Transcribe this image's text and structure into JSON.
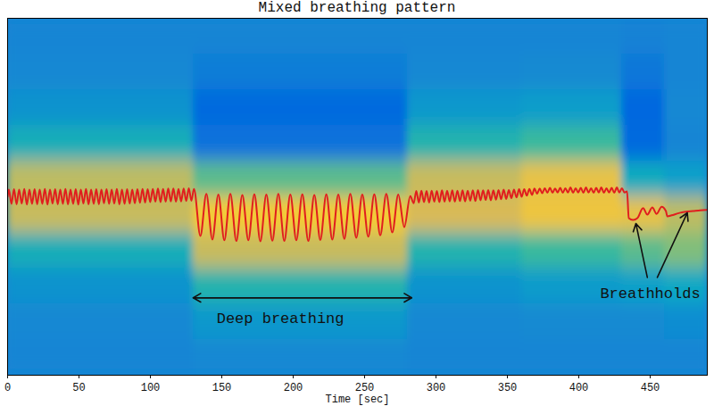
{
  "chart_data": {
    "type": "heatmap",
    "title": "Mixed breathing pattern",
    "x_label": "Time [sec]",
    "xlim": [
      0,
      490
    ],
    "xticks": [
      0,
      50,
      100,
      150,
      200,
      250,
      300,
      350,
      400,
      450
    ],
    "ylim": [
      0,
      100
    ],
    "tick_labels": "x",
    "cells": {
      "x_edges": [
        0,
        10,
        20,
        30,
        40,
        50,
        60,
        70,
        80,
        90,
        100,
        110,
        120,
        130,
        140,
        150,
        160,
        170,
        180,
        190,
        200,
        210,
        220,
        230,
        240,
        250,
        260,
        270,
        280,
        290,
        300,
        310,
        320,
        330,
        340,
        350,
        360,
        370,
        380,
        390,
        400,
        410,
        420,
        430,
        440,
        450,
        460,
        470,
        480,
        490
      ],
      "y_edges": [
        0,
        10,
        20,
        30,
        40,
        50,
        60,
        70,
        80,
        90,
        100
      ],
      "color_range": [
        0,
        1
      ],
      "values": [
        [
          0.25,
          0.25,
          0.25,
          0.25,
          0.25,
          0.25,
          0.25,
          0.25,
          0.25,
          0.25,
          0.25,
          0.25,
          0.25,
          0.26,
          0.26,
          0.26,
          0.26,
          0.26,
          0.26,
          0.26,
          0.26,
          0.26,
          0.26,
          0.26,
          0.26,
          0.26,
          0.26,
          0.26,
          0.25,
          0.25,
          0.25,
          0.25,
          0.25,
          0.25,
          0.25,
          0.25,
          0.25,
          0.25,
          0.25,
          0.25,
          0.25,
          0.25,
          0.25,
          0.25,
          0.25,
          0.25,
          0.25,
          0.25,
          0.25
        ],
        [
          0.26,
          0.26,
          0.26,
          0.26,
          0.26,
          0.26,
          0.26,
          0.26,
          0.26,
          0.26,
          0.26,
          0.26,
          0.26,
          0.32,
          0.32,
          0.32,
          0.32,
          0.32,
          0.32,
          0.32,
          0.32,
          0.32,
          0.32,
          0.32,
          0.32,
          0.32,
          0.32,
          0.32,
          0.26,
          0.26,
          0.26,
          0.26,
          0.26,
          0.26,
          0.26,
          0.26,
          0.27,
          0.27,
          0.27,
          0.27,
          0.27,
          0.27,
          0.27,
          0.27,
          0.27,
          0.27,
          0.28,
          0.28,
          0.28
        ],
        [
          0.3,
          0.3,
          0.3,
          0.3,
          0.3,
          0.3,
          0.3,
          0.3,
          0.3,
          0.3,
          0.3,
          0.3,
          0.3,
          0.45,
          0.45,
          0.45,
          0.45,
          0.45,
          0.45,
          0.45,
          0.45,
          0.45,
          0.45,
          0.45,
          0.45,
          0.45,
          0.45,
          0.45,
          0.3,
          0.3,
          0.3,
          0.3,
          0.3,
          0.3,
          0.3,
          0.3,
          0.33,
          0.33,
          0.33,
          0.33,
          0.33,
          0.33,
          0.33,
          0.35,
          0.35,
          0.35,
          0.38,
          0.38,
          0.38
        ],
        [
          0.42,
          0.42,
          0.42,
          0.42,
          0.42,
          0.42,
          0.42,
          0.42,
          0.42,
          0.42,
          0.42,
          0.42,
          0.42,
          0.72,
          0.72,
          0.72,
          0.72,
          0.72,
          0.72,
          0.72,
          0.72,
          0.72,
          0.72,
          0.72,
          0.72,
          0.72,
          0.72,
          0.72,
          0.45,
          0.45,
          0.45,
          0.45,
          0.45,
          0.45,
          0.45,
          0.45,
          0.5,
          0.5,
          0.5,
          0.5,
          0.5,
          0.5,
          0.5,
          0.55,
          0.55,
          0.55,
          0.6,
          0.6,
          0.6
        ],
        [
          0.72,
          0.72,
          0.72,
          0.72,
          0.72,
          0.72,
          0.72,
          0.72,
          0.72,
          0.72,
          0.72,
          0.72,
          0.72,
          0.85,
          0.85,
          0.85,
          0.85,
          0.85,
          0.85,
          0.85,
          0.85,
          0.85,
          0.85,
          0.85,
          0.85,
          0.85,
          0.85,
          0.85,
          0.75,
          0.75,
          0.75,
          0.75,
          0.75,
          0.75,
          0.75,
          0.75,
          0.82,
          0.82,
          0.82,
          0.82,
          0.82,
          0.82,
          0.82,
          0.8,
          0.8,
          0.8,
          0.7,
          0.7,
          0.7
        ],
        [
          0.7,
          0.7,
          0.7,
          0.7,
          0.7,
          0.7,
          0.7,
          0.7,
          0.7,
          0.7,
          0.7,
          0.7,
          0.7,
          0.55,
          0.55,
          0.55,
          0.55,
          0.55,
          0.55,
          0.55,
          0.55,
          0.55,
          0.55,
          0.55,
          0.55,
          0.55,
          0.55,
          0.55,
          0.72,
          0.72,
          0.72,
          0.72,
          0.72,
          0.72,
          0.72,
          0.72,
          0.8,
          0.8,
          0.8,
          0.8,
          0.8,
          0.8,
          0.8,
          0.4,
          0.4,
          0.4,
          0.35,
          0.35,
          0.35
        ],
        [
          0.42,
          0.42,
          0.42,
          0.42,
          0.42,
          0.42,
          0.42,
          0.42,
          0.42,
          0.42,
          0.42,
          0.42,
          0.42,
          0.18,
          0.18,
          0.18,
          0.18,
          0.18,
          0.18,
          0.18,
          0.18,
          0.18,
          0.18,
          0.18,
          0.18,
          0.18,
          0.18,
          0.18,
          0.45,
          0.45,
          0.45,
          0.45,
          0.45,
          0.45,
          0.45,
          0.45,
          0.5,
          0.5,
          0.5,
          0.5,
          0.5,
          0.5,
          0.5,
          0.15,
          0.15,
          0.15,
          0.25,
          0.25,
          0.25
        ],
        [
          0.3,
          0.3,
          0.3,
          0.3,
          0.3,
          0.3,
          0.3,
          0.3,
          0.3,
          0.3,
          0.3,
          0.3,
          0.3,
          0.15,
          0.15,
          0.15,
          0.15,
          0.15,
          0.15,
          0.15,
          0.15,
          0.15,
          0.15,
          0.15,
          0.15,
          0.15,
          0.15,
          0.15,
          0.32,
          0.32,
          0.32,
          0.32,
          0.32,
          0.32,
          0.32,
          0.32,
          0.34,
          0.34,
          0.34,
          0.34,
          0.34,
          0.34,
          0.34,
          0.14,
          0.14,
          0.14,
          0.26,
          0.26,
          0.26
        ],
        [
          0.26,
          0.26,
          0.26,
          0.26,
          0.26,
          0.26,
          0.26,
          0.26,
          0.26,
          0.26,
          0.26,
          0.26,
          0.26,
          0.22,
          0.22,
          0.22,
          0.22,
          0.22,
          0.22,
          0.22,
          0.22,
          0.22,
          0.22,
          0.22,
          0.22,
          0.22,
          0.22,
          0.22,
          0.26,
          0.26,
          0.26,
          0.26,
          0.26,
          0.26,
          0.26,
          0.26,
          0.27,
          0.27,
          0.27,
          0.27,
          0.27,
          0.27,
          0.27,
          0.2,
          0.2,
          0.2,
          0.25,
          0.25,
          0.25
        ],
        [
          0.25,
          0.25,
          0.25,
          0.25,
          0.25,
          0.25,
          0.25,
          0.25,
          0.25,
          0.25,
          0.25,
          0.25,
          0.25,
          0.25,
          0.25,
          0.25,
          0.25,
          0.25,
          0.25,
          0.25,
          0.25,
          0.25,
          0.25,
          0.25,
          0.25,
          0.25,
          0.25,
          0.25,
          0.25,
          0.25,
          0.25,
          0.25,
          0.25,
          0.25,
          0.25,
          0.25,
          0.25,
          0.25,
          0.25,
          0.25,
          0.25,
          0.25,
          0.25,
          0.24,
          0.24,
          0.24,
          0.25,
          0.25,
          0.25
        ]
      ]
    },
    "series": [
      {
        "type": "line",
        "color": "#e01e1e",
        "x": [
          0,
          0.9,
          2.7,
          4.5,
          6.3,
          8.1,
          9.9,
          11.7,
          13.5,
          15.3,
          17.1,
          18.9,
          20.7,
          22.5,
          24.3,
          26.1,
          27.9,
          29.7,
          31.5,
          33.3,
          35.1,
          36.9,
          38.7,
          40.5,
          42.3,
          44.1,
          45.9,
          47.7,
          49.5,
          51.3,
          53.1,
          54.9,
          56.7,
          58.5,
          60.3,
          62.1,
          63.9,
          65.7,
          67.5,
          69.3,
          71.1,
          72.9,
          74.7,
          76.5,
          78.3,
          80.1,
          81.9,
          83.7,
          85.5,
          87.3,
          89.1,
          90.9,
          92.7,
          94.5,
          96.3,
          98.1,
          99.9,
          101.7,
          103.5,
          105.3,
          107.1,
          108.9,
          110.7,
          112.5,
          114.3,
          116.1,
          117.9,
          119.7,
          121.5,
          123.3,
          125.1,
          126.9,
          128.7,
          130.5,
          135.0,
          139.2,
          143.4,
          147.6,
          151.8,
          156.0,
          160.2,
          164.4,
          168.6,
          172.8,
          177.0,
          181.2,
          185.4,
          189.6,
          193.8,
          198.0,
          202.2,
          206.4,
          210.6,
          214.8,
          219.0,
          223.2,
          227.4,
          231.6,
          235.8,
          240.0,
          244.2,
          248.4,
          252.6,
          256.8,
          261.0,
          265.2,
          269.4,
          273.6,
          277.8,
          282.0,
          284.4,
          286.2,
          288.0,
          289.8,
          291.6,
          293.4,
          295.2,
          297.0,
          298.8,
          300.6,
          302.4,
          304.2,
          306.0,
          307.8,
          309.6,
          311.4,
          313.2,
          315.0,
          316.8,
          318.6,
          320.4,
          322.2,
          324.0,
          325.8,
          327.6,
          329.4,
          331.2,
          333.0,
          334.8,
          336.6,
          338.4,
          340.2,
          342.0,
          343.8,
          345.6,
          347.4,
          349.2,
          351.0,
          352.8,
          354.6,
          356.4,
          358.2,
          360.0,
          361.8,
          363.6,
          365.4,
          367.2,
          369.0,
          370.8,
          372.6,
          374.4,
          376.2,
          378.0,
          379.8,
          381.6,
          383.4,
          385.2,
          387.0,
          388.8,
          390.6,
          392.4,
          394.2,
          396.0,
          397.8,
          399.6,
          401.4,
          403.2,
          405.0,
          406.8,
          408.6,
          410.4,
          412.2,
          414.0,
          415.8,
          417.6,
          419.4,
          421.2,
          423.0,
          424.8,
          426.6,
          428.4,
          430.2,
          432.0,
          433.8,
          435.0,
          438.0,
          441.0,
          445.0,
          448.0,
          451.5,
          454.5,
          458.0,
          461.0,
          462.0,
          465.0,
          470.0,
          475.0,
          480.0,
          485.0,
          490.0
        ],
        "values": [
          50.0,
          52.0,
          48.0,
          52.1,
          47.9,
          52.0,
          48.1,
          52.2,
          47.8,
          52.0,
          48.0,
          52.1,
          47.9,
          52.0,
          48.0,
          52.2,
          47.8,
          52.0,
          48.1,
          52.1,
          47.9,
          52.0,
          48.0,
          52.2,
          47.9,
          52.0,
          48.0,
          52.1,
          47.8,
          52.0,
          48.1,
          52.2,
          47.9,
          52.0,
          48.0,
          52.1,
          47.9,
          52.0,
          48.2,
          52.1,
          48.0,
          52.0,
          48.1,
          52.2,
          47.9,
          52.0,
          48.0,
          52.1,
          48.1,
          52.0,
          48.2,
          52.1,
          48.3,
          52.2,
          48.4,
          52.1,
          48.5,
          52.2,
          48.6,
          52.3,
          48.5,
          52.2,
          48.6,
          52.3,
          48.7,
          52.3,
          48.6,
          52.2,
          48.7,
          52.3,
          48.8,
          52.4,
          48.9,
          52.2,
          39.0,
          50.8,
          38.0,
          50.6,
          37.8,
          50.8,
          37.6,
          50.5,
          37.8,
          50.7,
          37.5,
          50.6,
          37.7,
          50.8,
          37.6,
          50.6,
          37.8,
          50.7,
          37.6,
          50.5,
          37.9,
          50.7,
          38.0,
          50.6,
          38.2,
          50.8,
          38.5,
          50.6,
          38.8,
          50.7,
          39.2,
          50.8,
          40.0,
          50.6,
          41.5,
          50.2,
          48.2,
          51.6,
          48.4,
          51.7,
          48.5,
          51.6,
          48.4,
          51.7,
          48.6,
          51.6,
          48.5,
          51.8,
          48.6,
          51.7,
          48.7,
          51.8,
          48.6,
          51.7,
          48.8,
          51.8,
          48.7,
          51.7,
          48.9,
          51.8,
          48.8,
          51.9,
          49.0,
          51.8,
          49.1,
          51.9,
          49.0,
          51.8,
          49.2,
          51.9,
          49.3,
          52.0,
          49.4,
          51.9,
          49.6,
          52.0,
          49.8,
          52.1,
          50.0,
          52.1,
          50.3,
          52.2,
          50.5,
          52.3,
          50.8,
          52.3,
          51.0,
          52.4,
          51.1,
          52.5,
          51.1,
          52.3,
          51.2,
          52.5,
          51.1,
          52.4,
          51.2,
          52.6,
          51.1,
          52.4,
          51.2,
          52.5,
          51.1,
          52.6,
          51.2,
          52.4,
          51.1,
          52.5,
          51.2,
          52.6,
          51.1,
          52.4,
          51.2,
          52.5,
          51.1,
          52.6,
          51.2,
          52.4,
          51.2,
          51.5,
          44.0,
          43.5,
          44.0,
          46.8,
          45.0,
          47.0,
          45.2,
          47.2,
          46.0,
          44.5,
          44.8,
          45.4,
          45.8,
          46.0,
          46.2,
          46.3
        ]
      }
    ],
    "annotations": [
      {
        "text": "Deep breathing",
        "x": 191,
        "y": 16,
        "arrows": [
          {
            "x1": 130,
            "y1": 21.7,
            "x2": 283,
            "y2": 21.7
          },
          {
            "x1": 283,
            "y1": 21.7,
            "x2": 130,
            "y2": 21.7
          }
        ]
      },
      {
        "text": "Breathholds",
        "x": 450,
        "y": 23,
        "arrows": [
          {
            "x1": 448,
            "y1": 27.4,
            "x2": 440,
            "y2": 42.5
          },
          {
            "x1": 455,
            "y1": 27.4,
            "x2": 476,
            "y2": 45.5
          }
        ]
      }
    ]
  }
}
